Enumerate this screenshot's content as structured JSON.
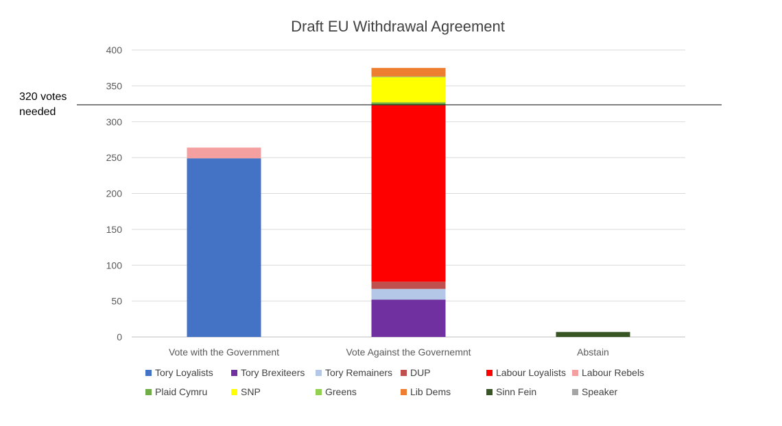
{
  "chart_data": {
    "type": "bar",
    "stacked": true,
    "title": "Draft EU Withdrawal Agreement",
    "xlabel": "",
    "ylabel": "",
    "ylim": [
      0,
      400
    ],
    "yticks": [
      0,
      50,
      100,
      150,
      200,
      250,
      300,
      350,
      400
    ],
    "grid": true,
    "legend_position": "bottom",
    "categories": [
      "Vote with the Government",
      "Vote Against the Governemnt",
      "Abstain"
    ],
    "series": [
      {
        "name": "Tory Loyalists",
        "color": "#4472C4",
        "values": [
          249,
          0,
          0
        ]
      },
      {
        "name": "Tory Brexiteers",
        "color": "#7030A0",
        "values": [
          0,
          52,
          0
        ]
      },
      {
        "name": "Tory Remainers",
        "color": "#B4C7E7",
        "values": [
          0,
          15,
          0
        ]
      },
      {
        "name": "DUP",
        "color": "#C0504D",
        "values": [
          0,
          10,
          0
        ]
      },
      {
        "name": "Labour Loyalists",
        "color": "#FF0000",
        "values": [
          0,
          246,
          0
        ]
      },
      {
        "name": "Labour Rebels",
        "color": "#F4A0A0",
        "values": [
          15,
          0,
          0
        ]
      },
      {
        "name": "Plaid Cymru",
        "color": "#70AD47",
        "values": [
          0,
          4,
          0
        ]
      },
      {
        "name": "SNP",
        "color": "#FFFF00",
        "values": [
          0,
          35,
          0
        ]
      },
      {
        "name": "Greens",
        "color": "#92D050",
        "values": [
          0,
          1,
          0
        ]
      },
      {
        "name": "Lib Dems",
        "color": "#ED7D31",
        "values": [
          0,
          12,
          0
        ]
      },
      {
        "name": "Sinn Fein",
        "color": "#375623",
        "values": [
          0,
          0,
          7
        ]
      },
      {
        "name": "Speaker",
        "color": "#A5A5A5",
        "values": [
          0,
          0,
          0
        ]
      }
    ],
    "threshold": {
      "value": 320,
      "label": "320 votes\nneeded",
      "color": "#000000"
    }
  }
}
